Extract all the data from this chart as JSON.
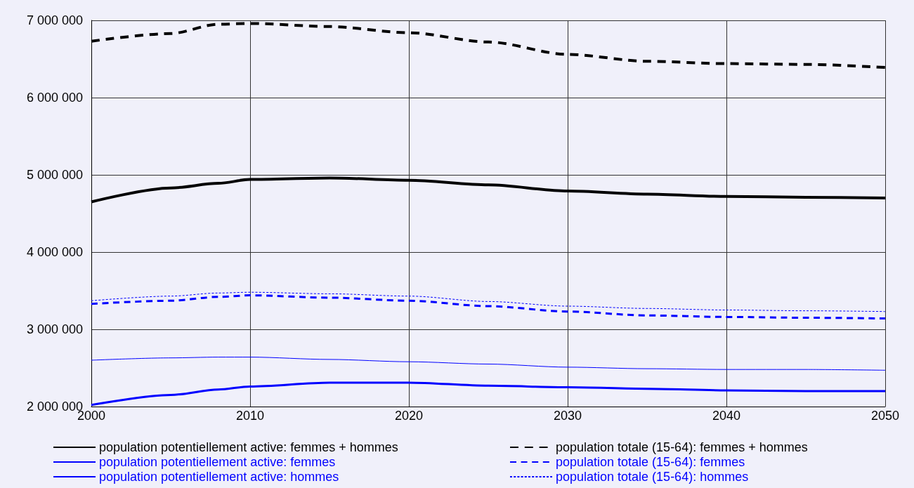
{
  "chart_data": {
    "type": "line",
    "x": [
      2000,
      2005,
      2008,
      2010,
      2015,
      2020,
      2025,
      2030,
      2035,
      2040,
      2045,
      2050
    ],
    "xlim": [
      2000,
      2050
    ],
    "xticks": [
      2000,
      2010,
      2020,
      2030,
      2040,
      2050
    ],
    "ylim": [
      2000000,
      7000000
    ],
    "yticks": [
      {
        "value": 2000000,
        "label": "2 000 000"
      },
      {
        "value": 3000000,
        "label": "3 000 000"
      },
      {
        "value": 4000000,
        "label": "4 000 000"
      },
      {
        "value": 5000000,
        "label": "5 000 000"
      },
      {
        "value": 6000000,
        "label": "6 000 000"
      },
      {
        "value": 7000000,
        "label": "7 000 000"
      }
    ],
    "grid": true,
    "legend": "bottom",
    "marker": "none",
    "series": [
      {
        "name": "population potentiellement active: femmes + hommes",
        "color": "#000000",
        "line_style": "solid",
        "values": [
          4650000,
          4830000,
          4890000,
          4940000,
          4960000,
          4930000,
          4870000,
          4790000,
          4750000,
          4720000,
          4710000,
          4700000
        ]
      },
      {
        "name": "population potentiellement active: femmes",
        "color": "#0000ff",
        "line_style": "solid",
        "values": [
          2020000,
          2150000,
          2220000,
          2260000,
          2310000,
          2310000,
          2270000,
          2250000,
          2230000,
          2210000,
          2200000,
          2200000
        ]
      },
      {
        "name": "population potentiellement active: hommes",
        "color": "#0000ff",
        "line_style": "solid",
        "values": [
          2600000,
          2630000,
          2640000,
          2640000,
          2610000,
          2580000,
          2550000,
          2510000,
          2490000,
          2480000,
          2480000,
          2470000
        ]
      },
      {
        "name": "population totale (15-64): femmes + hommes",
        "color": "#000000",
        "line_style": "dashed",
        "values": [
          6730000,
          6830000,
          6950000,
          6960000,
          6920000,
          6840000,
          6720000,
          6560000,
          6470000,
          6440000,
          6430000,
          6390000
        ]
      },
      {
        "name": "population totale (15-64): femmes",
        "color": "#0000ff",
        "line_style": "dashed",
        "values": [
          3330000,
          3370000,
          3420000,
          3440000,
          3410000,
          3370000,
          3300000,
          3230000,
          3180000,
          3160000,
          3150000,
          3140000
        ]
      },
      {
        "name": "population totale (15-64): hommes",
        "color": "#0000ff",
        "line_style": "dashed",
        "values": [
          3370000,
          3430000,
          3470000,
          3480000,
          3460000,
          3430000,
          3360000,
          3300000,
          3270000,
          3250000,
          3240000,
          3230000
        ]
      }
    ]
  }
}
